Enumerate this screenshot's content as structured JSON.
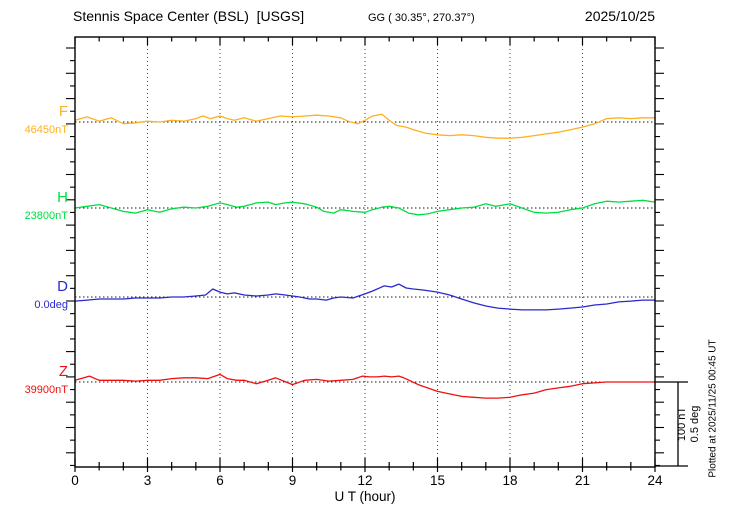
{
  "header": {
    "station_title": "Stennis Space Center (BSL)  [USGS]",
    "coords": "GG ( 30.35°, 270.37°)",
    "date": "2025/10/25"
  },
  "x_axis": {
    "label": "U T (hour)",
    "ticks": [
      "0",
      "3",
      "6",
      "9",
      "12",
      "15",
      "18",
      "21",
      "24"
    ]
  },
  "scale_bar": {
    "line1": "100 nT",
    "line2": "0.5 deg"
  },
  "plotted_at": "Plotted at 2025/11/25 00:45 UT",
  "chart_data": {
    "type": "line",
    "title": "Stennis Space Center (BSL) [USGS] magnetogram",
    "date": "2025/10/25",
    "xlabel": "U T (hour)",
    "x_range": [
      0,
      24
    ],
    "grid": "dotted vertical lines every 3 hours, dotted horizontal baseline per channel",
    "scale": {
      "nT_per_bar": 100,
      "deg_per_bar": 0.5
    },
    "series": [
      {
        "label": "F",
        "baseline_label": "46450nT",
        "baseline_value": 46450,
        "unit": "nT",
        "color": "#ffb020",
        "points": [
          [
            0,
            2
          ],
          [
            0.5,
            6
          ],
          [
            1,
            1
          ],
          [
            1.5,
            5
          ],
          [
            2,
            -2
          ],
          [
            2.5,
            -1
          ],
          [
            3,
            1
          ],
          [
            3.5,
            0
          ],
          [
            4,
            2
          ],
          [
            4.5,
            1
          ],
          [
            5,
            4
          ],
          [
            5.3,
            7
          ],
          [
            5.6,
            4
          ],
          [
            6,
            7
          ],
          [
            6.3,
            4
          ],
          [
            6.6,
            2
          ],
          [
            7,
            5
          ],
          [
            7.5,
            1
          ],
          [
            8,
            4
          ],
          [
            8.5,
            7
          ],
          [
            9,
            6
          ],
          [
            9.5,
            7
          ],
          [
            10,
            8
          ],
          [
            10.5,
            7
          ],
          [
            11,
            5
          ],
          [
            11.3,
            1
          ],
          [
            11.7,
            -2
          ],
          [
            12,
            2
          ],
          [
            12.3,
            7
          ],
          [
            12.7,
            9
          ],
          [
            13,
            2
          ],
          [
            13.3,
            -4
          ],
          [
            13.7,
            -6
          ],
          [
            14,
            -9
          ],
          [
            14.5,
            -13
          ],
          [
            15,
            -15
          ],
          [
            15.5,
            -16
          ],
          [
            16,
            -15
          ],
          [
            16.5,
            -16
          ],
          [
            17,
            -18
          ],
          [
            17.5,
            -19
          ],
          [
            18,
            -19
          ],
          [
            18.5,
            -18
          ],
          [
            19,
            -16
          ],
          [
            19.5,
            -14
          ],
          [
            20,
            -12
          ],
          [
            20.5,
            -9
          ],
          [
            21,
            -6
          ],
          [
            21.5,
            -2
          ],
          [
            22,
            4
          ],
          [
            22.5,
            5
          ],
          [
            23,
            4
          ],
          [
            23.5,
            5
          ],
          [
            24,
            5
          ]
        ]
      },
      {
        "label": "H",
        "baseline_label": "23800nT",
        "baseline_value": 23800,
        "unit": "nT",
        "color": "#00dd44",
        "points": [
          [
            0,
            0
          ],
          [
            0.5,
            2
          ],
          [
            1,
            4
          ],
          [
            1.5,
            0
          ],
          [
            2,
            -4
          ],
          [
            2.5,
            -6
          ],
          [
            3,
            -2
          ],
          [
            3.5,
            -5
          ],
          [
            4,
            -1
          ],
          [
            4.5,
            1
          ],
          [
            5,
            0
          ],
          [
            5.5,
            2
          ],
          [
            6,
            6
          ],
          [
            6.3,
            4
          ],
          [
            6.7,
            1
          ],
          [
            7,
            2
          ],
          [
            7.5,
            6
          ],
          [
            8,
            7
          ],
          [
            8.3,
            4
          ],
          [
            8.7,
            6
          ],
          [
            9,
            7
          ],
          [
            9.5,
            5
          ],
          [
            10,
            1
          ],
          [
            10.3,
            -4
          ],
          [
            10.7,
            -6
          ],
          [
            11,
            -2
          ],
          [
            11.5,
            -4
          ],
          [
            12,
            -5
          ],
          [
            12.3,
            -2
          ],
          [
            12.7,
            1
          ],
          [
            13,
            2
          ],
          [
            13.4,
            0
          ],
          [
            13.8,
            -6
          ],
          [
            14.2,
            -8
          ],
          [
            14.6,
            -7
          ],
          [
            15,
            -4
          ],
          [
            15.5,
            -2
          ],
          [
            16,
            0
          ],
          [
            16.5,
            1
          ],
          [
            17,
            5
          ],
          [
            17.4,
            2
          ],
          [
            18,
            5
          ],
          [
            18.7,
            -2
          ],
          [
            19,
            -5
          ],
          [
            19.5,
            -6
          ],
          [
            20,
            -5
          ],
          [
            20.5,
            -2
          ],
          [
            21,
            0
          ],
          [
            21.5,
            5
          ],
          [
            22,
            8
          ],
          [
            22.5,
            7
          ],
          [
            23,
            8
          ],
          [
            23.5,
            9
          ],
          [
            24,
            7
          ]
        ]
      },
      {
        "label": "D",
        "baseline_label": "0.0deg",
        "baseline_value": 0.0,
        "unit": "deg",
        "color": "#2929cc",
        "points": [
          [
            0,
            -0.024
          ],
          [
            0.5,
            -0.018
          ],
          [
            1,
            -0.012
          ],
          [
            1.5,
            -0.012
          ],
          [
            2,
            -0.012
          ],
          [
            2.5,
            -0.006
          ],
          [
            3,
            -0.006
          ],
          [
            3.5,
            -0.006
          ],
          [
            4,
            0
          ],
          [
            4.5,
            0
          ],
          [
            5,
            0.006
          ],
          [
            5.4,
            0.012
          ],
          [
            5.7,
            0.047
          ],
          [
            6,
            0.029
          ],
          [
            6.3,
            0.018
          ],
          [
            6.6,
            0.024
          ],
          [
            7,
            0.012
          ],
          [
            7.5,
            0.006
          ],
          [
            8,
            0.012
          ],
          [
            8.3,
            0.018
          ],
          [
            8.7,
            0.012
          ],
          [
            9,
            0.006
          ],
          [
            9.3,
            0
          ],
          [
            9.7,
            -0.012
          ],
          [
            10,
            -0.012
          ],
          [
            10.4,
            -0.018
          ],
          [
            10.7,
            -0.006
          ],
          [
            11,
            0
          ],
          [
            11.5,
            -0.006
          ],
          [
            12,
            0.018
          ],
          [
            12.3,
            0.035
          ],
          [
            12.8,
            0.065
          ],
          [
            13.1,
            0.059
          ],
          [
            13.4,
            0.076
          ],
          [
            13.7,
            0.053
          ],
          [
            14,
            0.047
          ],
          [
            14.4,
            0.041
          ],
          [
            15,
            0.029
          ],
          [
            15.5,
            0.012
          ],
          [
            16,
            -0.012
          ],
          [
            16.5,
            -0.035
          ],
          [
            17,
            -0.053
          ],
          [
            17.5,
            -0.065
          ],
          [
            18,
            -0.071
          ],
          [
            18.5,
            -0.076
          ],
          [
            19,
            -0.076
          ],
          [
            19.5,
            -0.076
          ],
          [
            20,
            -0.071
          ],
          [
            20.5,
            -0.065
          ],
          [
            21,
            -0.059
          ],
          [
            21.5,
            -0.047
          ],
          [
            22,
            -0.041
          ],
          [
            22.5,
            -0.029
          ],
          [
            23,
            -0.024
          ],
          [
            23.5,
            -0.018
          ],
          [
            24,
            -0.018
          ]
        ]
      },
      {
        "label": "Z",
        "baseline_label": "39900nT",
        "baseline_value": 39900,
        "unit": "nT",
        "color": "#ee1111",
        "points": [
          [
            0,
            2
          ],
          [
            0.6,
            7
          ],
          [
            1,
            2
          ],
          [
            1.5,
            2
          ],
          [
            2,
            2
          ],
          [
            2.5,
            1
          ],
          [
            3,
            2
          ],
          [
            3.5,
            2
          ],
          [
            4,
            4
          ],
          [
            4.5,
            5
          ],
          [
            5,
            5
          ],
          [
            5.5,
            4
          ],
          [
            6,
            9
          ],
          [
            6.3,
            4
          ],
          [
            6.7,
            2
          ],
          [
            7,
            2
          ],
          [
            7.5,
            -2
          ],
          [
            8,
            2
          ],
          [
            8.3,
            5
          ],
          [
            9,
            -3
          ],
          [
            9.5,
            2
          ],
          [
            10,
            3
          ],
          [
            10.5,
            1
          ],
          [
            11,
            2
          ],
          [
            11.5,
            3
          ],
          [
            11.9,
            7
          ],
          [
            12.2,
            6
          ],
          [
            12.5,
            6
          ],
          [
            12.8,
            7
          ],
          [
            13.1,
            6
          ],
          [
            13.4,
            7
          ],
          [
            13.6,
            5
          ],
          [
            13.9,
            1
          ],
          [
            14.2,
            -3
          ],
          [
            14.5,
            -6
          ],
          [
            15,
            -11
          ],
          [
            15.5,
            -14
          ],
          [
            16,
            -17
          ],
          [
            16.5,
            -18
          ],
          [
            17,
            -19
          ],
          [
            17.5,
            -19
          ],
          [
            18,
            -18
          ],
          [
            18.5,
            -15
          ],
          [
            19,
            -13
          ],
          [
            19.5,
            -9
          ],
          [
            20,
            -7
          ],
          [
            20.5,
            -5
          ],
          [
            21,
            -2
          ],
          [
            21.5,
            -1
          ],
          [
            22,
            0
          ],
          [
            22.5,
            0
          ],
          [
            23,
            0
          ],
          [
            23.5,
            0
          ],
          [
            24,
            0
          ]
        ]
      }
    ]
  }
}
